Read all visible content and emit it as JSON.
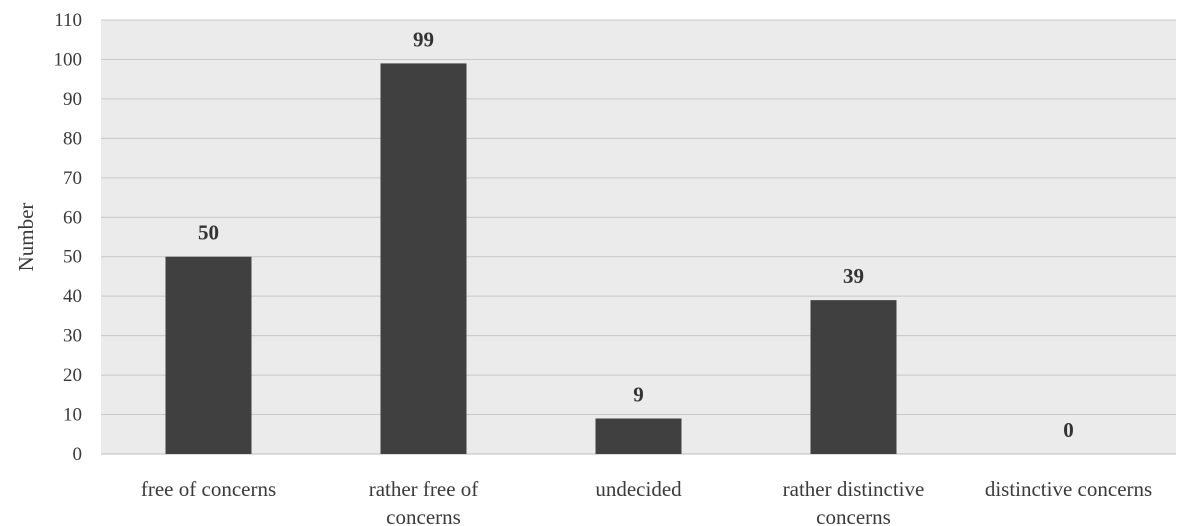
{
  "chart_data": {
    "type": "bar",
    "title": "",
    "xlabel": "",
    "ylabel": "Number",
    "categories": [
      [
        "free of concerns"
      ],
      [
        "rather free of",
        "concerns"
      ],
      [
        "undecided"
      ],
      [
        "rather distinctive",
        "concerns"
      ],
      [
        "distinctive concerns"
      ]
    ],
    "values": [
      50,
      99,
      9,
      39,
      0
    ],
    "data_labels": [
      "50",
      "99",
      "9",
      "39",
      "0"
    ],
    "ylim": [
      0,
      110
    ],
    "yticks": [
      0,
      10,
      20,
      30,
      40,
      50,
      60,
      70,
      80,
      90,
      100,
      110
    ],
    "grid": true,
    "legend": "none",
    "colors": {
      "bar": "#404040",
      "plot_background": "#ebebeb",
      "gridline": "#c8c8c8",
      "text": "#3a3a3a"
    }
  }
}
